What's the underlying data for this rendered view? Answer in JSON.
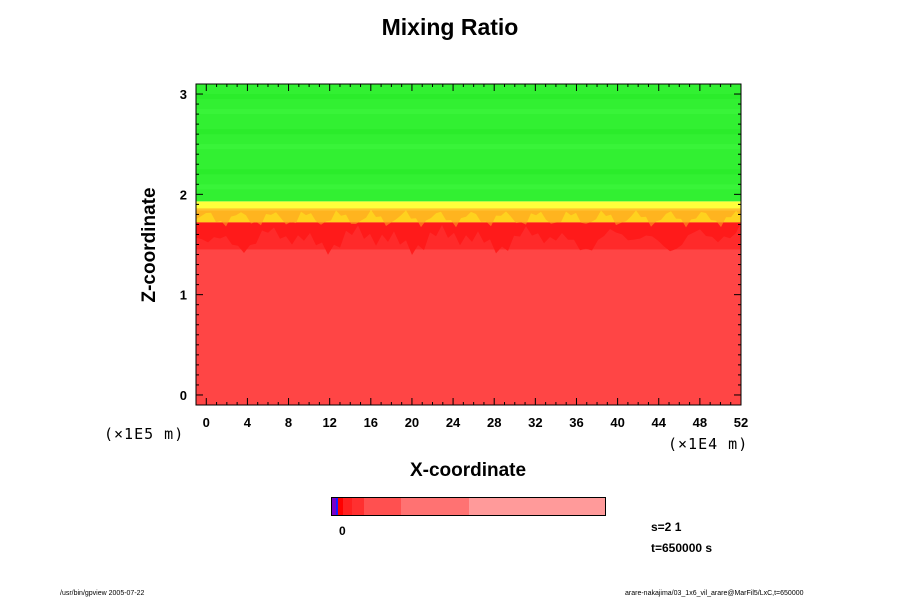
{
  "chart_data": {
    "type": "heatmap",
    "title": "Mixing Ratio",
    "xlabel": "X-coordinate",
    "ylabel": "Z-coordinate",
    "x_unit_left": "(×1E5 m)",
    "x_unit_right": "(×1E4 m)",
    "xlim": [
      -1,
      52
    ],
    "ylim": [
      -0.1,
      3.1
    ],
    "x_ticks": [
      "0",
      "4",
      "8",
      "12",
      "16",
      "20",
      "24",
      "28",
      "32",
      "36",
      "40",
      "44",
      "48",
      "52"
    ],
    "y_ticks": [
      "0",
      "1",
      "2",
      "3"
    ],
    "layers": [
      {
        "z_from": -0.1,
        "z_to": 1.45,
        "color": "#ff4545"
      },
      {
        "z_from": 1.45,
        "z_to": 1.72,
        "color": "#ff2a2a"
      },
      {
        "z_from": 1.72,
        "z_to": 1.84,
        "color": "#ffd21e"
      },
      {
        "z_from": 1.84,
        "z_to": 1.93,
        "color": "#ffff3c"
      },
      {
        "z_from": 1.93,
        "z_to": 3.1,
        "color": "#32f032"
      }
    ],
    "colorbar": {
      "label_zero": "0",
      "segments": [
        {
          "color": "#7a00c8",
          "weight": 3
        },
        {
          "color": "#1a1aff",
          "weight": 2
        },
        {
          "color": "#ff0000",
          "weight": 4
        },
        {
          "color": "#ff2020",
          "weight": 7
        },
        {
          "color": "#ff3030",
          "weight": 10
        },
        {
          "color": "#ff5050",
          "weight": 30
        },
        {
          "color": "#ff7272",
          "weight": 55
        },
        {
          "color": "#ff9a9a",
          "weight": 110
        }
      ]
    }
  },
  "meta": {
    "s_label": "s=2 1",
    "t_label": "t=650000 s",
    "footer_left": "/usr/bin/gpview 2005-07-22",
    "footer_right": "arare-nakajima/03_1x6_vil_arare@MarFil5/LxC,t=650000"
  }
}
